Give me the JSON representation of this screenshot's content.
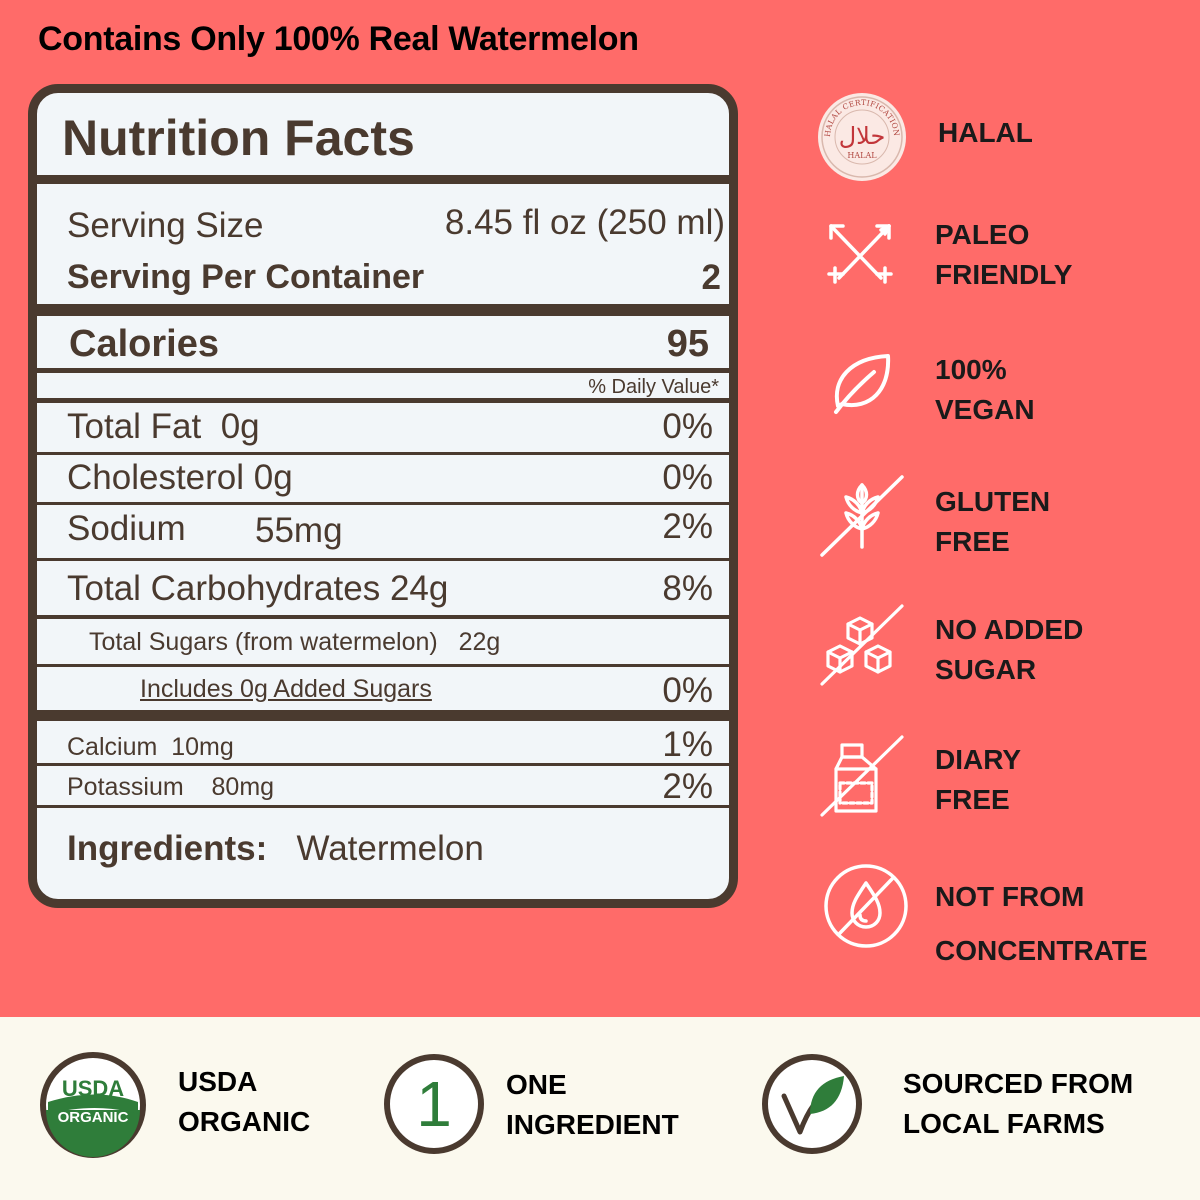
{
  "headline": "Contains Only 100% Real Watermelon",
  "nutrition": {
    "title": "Nutrition Facts",
    "serving_size_label": "Serving Size",
    "serving_size_value": "8.45 fl oz (250 ml)",
    "servings_label": "Serving Per Container",
    "servings_value": "2",
    "calories_label": "Calories",
    "calories_value": "95",
    "daily_value_header": "% Daily Value*",
    "rows": [
      {
        "label": "Total Fat",
        "amount": "0g",
        "dv": "0%"
      },
      {
        "label": "Cholesterol",
        "amount": "0g",
        "dv": "0%"
      },
      {
        "label": "Sodium",
        "amount": "55mg",
        "dv": "2%"
      },
      {
        "label": "Total Carbohydrates",
        "amount": "24g",
        "dv": "8%"
      }
    ],
    "sugars_label": "Total Sugars (from watermelon)",
    "sugars_amount": "22g",
    "added_sugars_label": "Includes 0g Added Sugars",
    "added_sugars_dv": "0%",
    "minerals": [
      {
        "label": "Calcium",
        "amount": "10mg",
        "dv": "1%"
      },
      {
        "label": "Potassium",
        "amount": "80mg",
        "dv": "2%"
      }
    ],
    "ingredients_label": "Ingredients:",
    "ingredients_value": "Watermelon"
  },
  "badges": [
    {
      "icon": "halal-seal-icon",
      "lines": [
        "HALAL"
      ],
      "seal_arabic": "حلال",
      "seal_text": "HALAL",
      "seal_ring_text": "HALAL CERTIFICATION AGENCY"
    },
    {
      "icon": "crossed-arrows-icon",
      "lines": [
        "PALEO",
        "FRIENDLY"
      ]
    },
    {
      "icon": "leaf-icon",
      "lines": [
        "100%",
        "VEGAN"
      ]
    },
    {
      "icon": "wheat-crossed-icon",
      "lines": [
        "GLUTEN",
        "FREE"
      ]
    },
    {
      "icon": "sugar-cubes-crossed-icon",
      "lines": [
        "NO ADDED",
        "SUGAR"
      ]
    },
    {
      "icon": "milk-carton-crossed-icon",
      "lines": [
        "DIARY",
        "FREE"
      ]
    },
    {
      "icon": "drop-crossed-icon",
      "lines": [
        "NOT FROM",
        "CONCENTRATE"
      ]
    }
  ],
  "bottom_badges": [
    {
      "icon": "usda-organic-seal-icon",
      "seal_top": "USDA",
      "seal_bottom": "ORGANIC",
      "lines": [
        "USDA",
        "ORGANIC"
      ]
    },
    {
      "icon": "number-one-icon",
      "numeral": "1",
      "lines": [
        "ONE",
        "INGREDIENT"
      ]
    },
    {
      "icon": "checkmark-leaf-icon",
      "lines": [
        "SOURCED FROM",
        "LOCAL FARMS"
      ]
    }
  ],
  "colors": {
    "background": "#ff6b69",
    "bottom_band": "#fbf9ee",
    "panel": "#f2f6f9",
    "panel_ink": "#4a3a2f",
    "organic_green": "#2f7d3a"
  }
}
